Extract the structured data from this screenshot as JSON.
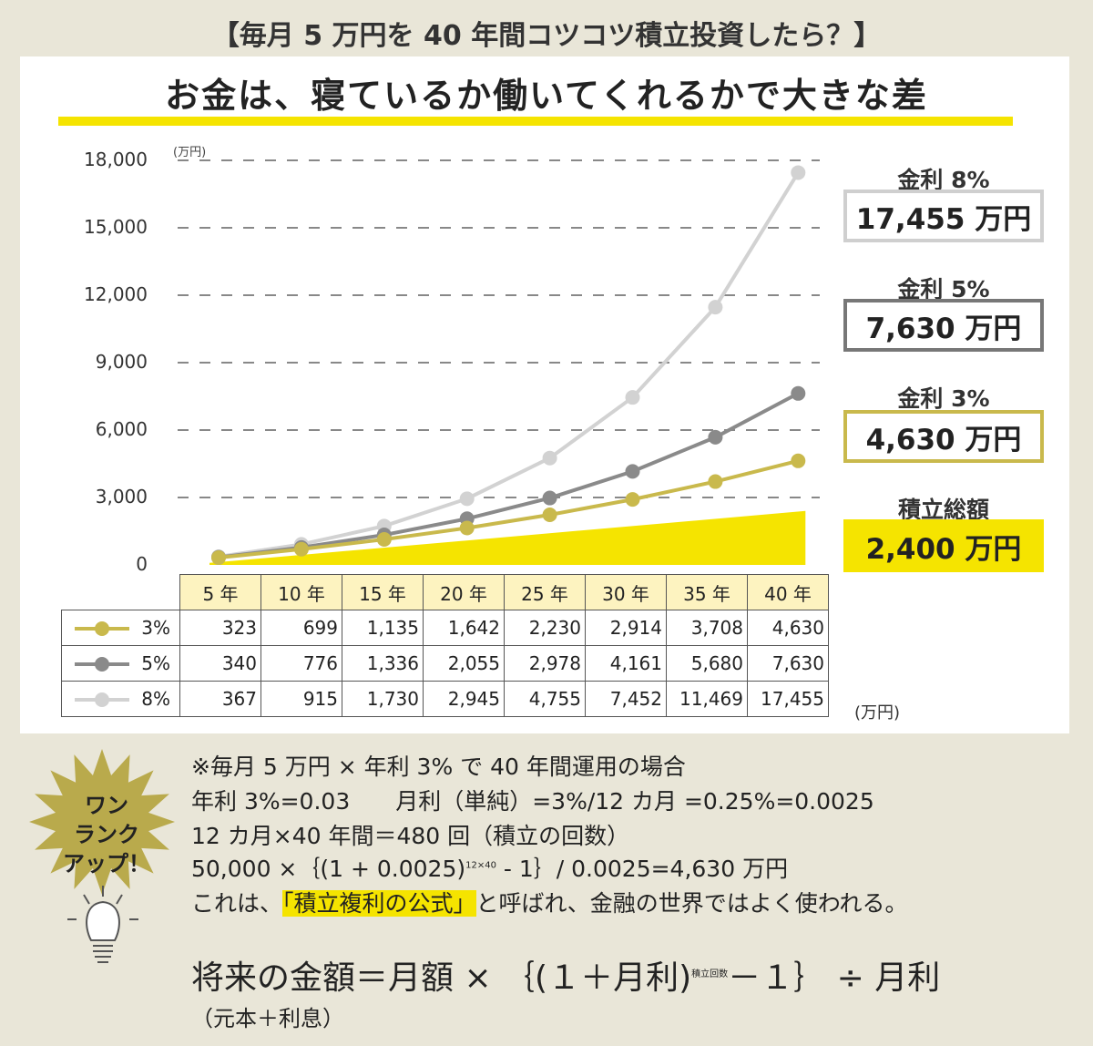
{
  "header": {
    "top_title": "【毎月 5 万円を 40 年間コツコツ積立投資したら？】",
    "main_title": "お金は、寝ているか働いてくれるかで大きな差"
  },
  "chart_data": {
    "type": "line",
    "title": "お金は、寝ているか働いてくれるかで大きな差",
    "ylabel": "(万円)",
    "ylim": [
      0,
      18000
    ],
    "yticks": [
      "18,000",
      "15,000",
      "12,000",
      "9,000",
      "6,000",
      "3,000",
      "0"
    ],
    "ytick_values": [
      18000,
      15000,
      12000,
      9000,
      6000,
      3000,
      0
    ],
    "categories": [
      "5 年",
      "10 年",
      "15 年",
      "20 年",
      "25 年",
      "30 年",
      "35 年",
      "40 年"
    ],
    "grid": "dashed horizontal",
    "series": [
      {
        "name": "3%",
        "color": "#c9b94c",
        "values": [
          323,
          699,
          1135,
          1642,
          2230,
          2914,
          3708,
          4630
        ],
        "labels": [
          "323",
          "699",
          "1,135",
          "1,642",
          "2,230",
          "2,914",
          "3,708",
          "4,630"
        ]
      },
      {
        "name": "5%",
        "color": "#8a8a8a",
        "values": [
          340,
          776,
          1336,
          2055,
          2978,
          4161,
          5680,
          7630
        ],
        "labels": [
          "340",
          "776",
          "1,336",
          "2,055",
          "2,978",
          "4,161",
          "5,680",
          "7,630"
        ]
      },
      {
        "name": "8%",
        "color": "#d2d2d2",
        "values": [
          367,
          915,
          1730,
          2945,
          4755,
          7452,
          11469,
          17455
        ],
        "labels": [
          "367",
          "915",
          "1,730",
          "2,945",
          "4,755",
          "7,452",
          "11,469",
          "17,455"
        ]
      }
    ],
    "contribution": {
      "name": "積立総額",
      "color": "#f5e400",
      "values": [
        300,
        600,
        900,
        1200,
        1500,
        1800,
        2100,
        2400
      ]
    },
    "table_unit": "(万円)"
  },
  "results": [
    {
      "label": "金利 8%",
      "value": "17,455 万円",
      "border": "#cfcfcf"
    },
    {
      "label": "金利 5%",
      "value": "7,630 万円",
      "border": "#777777"
    },
    {
      "label": "金利 3%",
      "value": "4,630 万円",
      "border": "#c9b94c"
    },
    {
      "label": "積立総額",
      "value": "2,400 万円",
      "fill": "#f5e400"
    }
  ],
  "badge": {
    "text": "ワン\nランク\nアップ！",
    "color": "#b9aa4c"
  },
  "notes": {
    "line1": "※毎月 5 万円 × 年利 3% で 40 年間運用の場合",
    "line2": "年利 3%=0.03　　月利（単純）=3%/12 カ月 =0.25%=0.0025",
    "line3": "12 カ月×40 年間＝480 回（積立の回数）",
    "line4_a": "50,000 ×｛(1 + 0.0025)",
    "line4_sup": "12×40",
    "line4_b": " - 1｝/ 0.0025=4,630 万円",
    "line5_a": "これは、",
    "line5_hl": "「積立複利の公式」",
    "line5_b": "と呼ばれ、金融の世界ではよく使われる。"
  },
  "formula": {
    "a": "将来の金額＝月額 × ｛(１＋月利)",
    "sup": "積立回数",
    "b": "－１｝ ÷ 月利",
    "sub": "（元本＋利息）"
  }
}
